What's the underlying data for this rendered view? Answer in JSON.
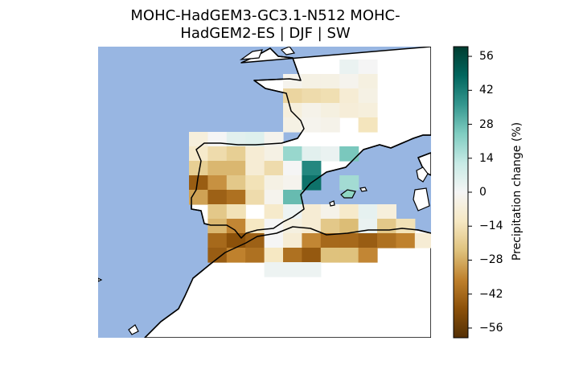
{
  "title": {
    "line1": "MOHC-HadGEM3-GC3.1-N512 MOHC-",
    "line2": "HadGEM2-ES | DJF | SW"
  },
  "colorbar": {
    "label": "Precipitation change (%)",
    "ticks": [
      "56",
      "42",
      "28",
      "14",
      "0",
      "−14",
      "−28",
      "−42",
      "−56"
    ],
    "tick_values": [
      56,
      42,
      28,
      14,
      0,
      -14,
      -28,
      -42,
      -56
    ],
    "range": [
      -60,
      60
    ],
    "colormap": "BrBG"
  },
  "colors": {
    "sea": "#98b6e2",
    "coast": "#000000"
  },
  "grid": {
    "columns": 12,
    "rows": 15,
    "cells": [
      {
        "c": 8,
        "r": 0,
        "v": 3
      },
      {
        "c": 9,
        "r": 0,
        "v": 0
      },
      {
        "c": 5,
        "r": 1,
        "v": -2
      },
      {
        "c": 6,
        "r": 1,
        "v": -4
      },
      {
        "c": 7,
        "r": 1,
        "v": -4
      },
      {
        "c": 8,
        "r": 1,
        "v": -2
      },
      {
        "c": 9,
        "r": 1,
        "v": -5
      },
      {
        "c": 5,
        "r": 2,
        "v": -18
      },
      {
        "c": 6,
        "r": 2,
        "v": -16
      },
      {
        "c": 7,
        "r": 2,
        "v": -15
      },
      {
        "c": 8,
        "r": 2,
        "v": -8
      },
      {
        "c": 9,
        "r": 2,
        "v": -4
      },
      {
        "c": 5,
        "r": 3,
        "v": -6
      },
      {
        "c": 6,
        "r": 3,
        "v": -3
      },
      {
        "c": 7,
        "r": 3,
        "v": -5
      },
      {
        "c": 8,
        "r": 3,
        "v": -7
      },
      {
        "c": 9,
        "r": 3,
        "v": -6
      },
      {
        "c": 5,
        "r": 4,
        "v": -4
      },
      {
        "c": 6,
        "r": 4,
        "v": -2
      },
      {
        "c": 7,
        "r": 4,
        "v": -3
      },
      {
        "c": 9,
        "r": 4,
        "v": -13
      },
      {
        "c": 0,
        "r": 5,
        "v": -6
      },
      {
        "c": 1,
        "r": 5,
        "v": 0
      },
      {
        "c": 2,
        "r": 5,
        "v": 5
      },
      {
        "c": 3,
        "r": 5,
        "v": 6
      },
      {
        "c": 4,
        "r": 5,
        "v": -2
      },
      {
        "c": 0,
        "r": 6,
        "v": -10
      },
      {
        "c": 1,
        "r": 6,
        "v": -16
      },
      {
        "c": 2,
        "r": 6,
        "v": -20
      },
      {
        "c": 3,
        "r": 6,
        "v": -8
      },
      {
        "c": 4,
        "r": 6,
        "v": -4
      },
      {
        "c": 5,
        "r": 6,
        "v": 20
      },
      {
        "c": 6,
        "r": 6,
        "v": 5
      },
      {
        "c": 7,
        "r": 6,
        "v": 3
      },
      {
        "c": 8,
        "r": 6,
        "v": 25
      },
      {
        "c": 0,
        "r": 7,
        "v": -20
      },
      {
        "c": 1,
        "r": 7,
        "v": -26
      },
      {
        "c": 2,
        "r": 7,
        "v": -26
      },
      {
        "c": 3,
        "r": 7,
        "v": -8
      },
      {
        "c": 4,
        "r": 7,
        "v": -16
      },
      {
        "c": 5,
        "r": 7,
        "v": 0
      },
      {
        "c": 6,
        "r": 7,
        "v": 40
      },
      {
        "c": 0,
        "r": 8,
        "v": -45
      },
      {
        "c": 1,
        "r": 8,
        "v": -33
      },
      {
        "c": 2,
        "r": 8,
        "v": -22
      },
      {
        "c": 3,
        "r": 8,
        "v": -14
      },
      {
        "c": 4,
        "r": 8,
        "v": -4
      },
      {
        "c": 5,
        "r": 8,
        "v": -2
      },
      {
        "c": 6,
        "r": 8,
        "v": 45
      },
      {
        "c": 8,
        "r": 8,
        "v": 18
      },
      {
        "c": 0,
        "r": 9,
        "v": -30
      },
      {
        "c": 1,
        "r": 9,
        "v": -44
      },
      {
        "c": 2,
        "r": 9,
        "v": -40
      },
      {
        "c": 3,
        "r": 9,
        "v": -16
      },
      {
        "c": 4,
        "r": 9,
        "v": -2
      },
      {
        "c": 5,
        "r": 9,
        "v": 28
      },
      {
        "c": 1,
        "r": 10,
        "v": -22
      },
      {
        "c": 2,
        "r": 10,
        "v": -14
      },
      {
        "c": 4,
        "r": 10,
        "v": -10
      },
      {
        "c": 5,
        "r": 10,
        "v": 2
      },
      {
        "c": 6,
        "r": 10,
        "v": -8
      },
      {
        "c": 7,
        "r": 10,
        "v": -3
      },
      {
        "c": 8,
        "r": 10,
        "v": -10
      },
      {
        "c": 9,
        "r": 10,
        "v": 4
      },
      {
        "c": 10,
        "r": 10,
        "v": -6
      },
      {
        "c": 1,
        "r": 11,
        "v": -26
      },
      {
        "c": 2,
        "r": 11,
        "v": -35
      },
      {
        "c": 3,
        "r": 11,
        "v": -12
      },
      {
        "c": 4,
        "r": 11,
        "v": 0
      },
      {
        "c": 5,
        "r": 11,
        "v": -5
      },
      {
        "c": 6,
        "r": 11,
        "v": -8
      },
      {
        "c": 7,
        "r": 11,
        "v": -22
      },
      {
        "c": 8,
        "r": 11,
        "v": -25
      },
      {
        "c": 9,
        "r": 11,
        "v": 3
      },
      {
        "c": 10,
        "r": 11,
        "v": -22
      },
      {
        "c": 11,
        "r": 11,
        "v": -14
      },
      {
        "c": 1,
        "r": 12,
        "v": -42
      },
      {
        "c": 2,
        "r": 12,
        "v": -48
      },
      {
        "c": 3,
        "r": 12,
        "v": -44
      },
      {
        "c": 4,
        "r": 12,
        "v": 0
      },
      {
        "c": 5,
        "r": 12,
        "v": -8
      },
      {
        "c": 6,
        "r": 12,
        "v": -35
      },
      {
        "c": 7,
        "r": 12,
        "v": -42
      },
      {
        "c": 8,
        "r": 12,
        "v": -42
      },
      {
        "c": 9,
        "r": 12,
        "v": -45
      },
      {
        "c": 10,
        "r": 12,
        "v": -40
      },
      {
        "c": 11,
        "r": 12,
        "v": -36
      },
      {
        "c": 12,
        "r": 12,
        "v": -8
      },
      {
        "c": 1,
        "r": 13,
        "v": -45
      },
      {
        "c": 2,
        "r": 13,
        "v": -36
      },
      {
        "c": 3,
        "r": 13,
        "v": -40
      },
      {
        "c": 4,
        "r": 13,
        "v": -12
      },
      {
        "c": 5,
        "r": 13,
        "v": -40
      },
      {
        "c": 6,
        "r": 13,
        "v": -46
      },
      {
        "c": 7,
        "r": 13,
        "v": -24
      },
      {
        "c": 8,
        "r": 13,
        "v": -24
      },
      {
        "c": 9,
        "r": 13,
        "v": -35
      },
      {
        "c": 4,
        "r": 14,
        "v": 2
      },
      {
        "c": 5,
        "r": 14,
        "v": 2
      },
      {
        "c": 6,
        "r": 14,
        "v": 2
      }
    ]
  }
}
